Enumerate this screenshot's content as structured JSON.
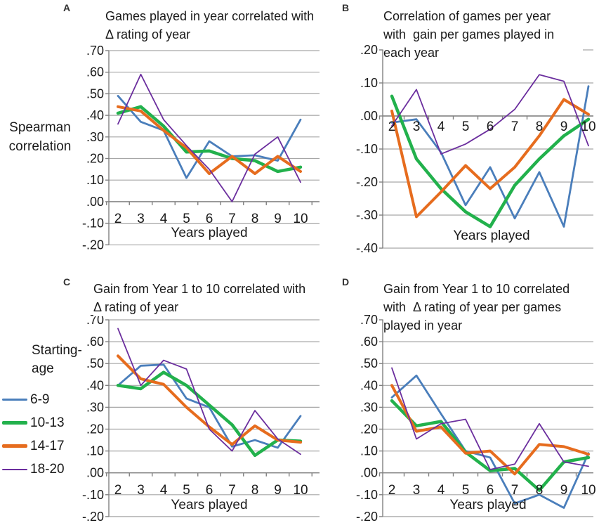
{
  "y_axis_label": "Spearman\ncorrelation",
  "legend": {
    "title": "Starting-\nage",
    "entries": [
      {
        "label": "6-9",
        "color": "#4a7ebb",
        "weight": 3
      },
      {
        "label": "10-13",
        "color": "#22b14c",
        "weight": 5
      },
      {
        "label": "14-17",
        "color": "#e66c1e",
        "weight": 4.5
      },
      {
        "label": "18-20",
        "color": "#6b2e9e",
        "weight": 2
      }
    ]
  },
  "colors": {
    "gridline": "#a6a6a6",
    "axis": "#808080",
    "text": "#1a1a1a",
    "blue": "#4a7ebb",
    "green": "#22b14c",
    "orange": "#e66c1e",
    "purple": "#6b2e9e"
  },
  "chart_data": [
    {
      "panel": "A",
      "type": "line",
      "title": "Games played in year correlated with\nΔ rating of year",
      "xlabel": "Years played",
      "x": [
        2,
        3,
        4,
        5,
        6,
        7,
        8,
        9,
        10
      ],
      "x_labels": [
        "2",
        "3",
        "4",
        "5",
        "6",
        "7",
        "8",
        "9",
        "10"
      ],
      "ylim": [
        -0.2,
        0.7
      ],
      "ytick_step": 0.1,
      "yticks": [
        ".70",
        ".60",
        ".50",
        ".40",
        ".30",
        ".20",
        ".10",
        ".00",
        "-.10",
        "-.20"
      ],
      "grid": true,
      "series": [
        {
          "name": "6-9",
          "color": "#4a7ebb",
          "width": 2.8,
          "values": [
            0.49,
            0.37,
            0.33,
            0.11,
            0.28,
            0.21,
            0.215,
            0.19,
            0.38
          ]
        },
        {
          "name": "10-13",
          "color": "#22b14c",
          "width": 4.5,
          "values": [
            0.41,
            0.44,
            0.35,
            0.23,
            0.235,
            0.2,
            0.19,
            0.14,
            0.16
          ]
        },
        {
          "name": "14-17",
          "color": "#e66c1e",
          "width": 4.0,
          "values": [
            0.44,
            0.42,
            0.33,
            0.25,
            0.13,
            0.21,
            0.13,
            0.21,
            0.14
          ]
        },
        {
          "name": "18-20",
          "color": "#6b2e9e",
          "width": 1.8,
          "values": [
            0.36,
            0.59,
            0.38,
            0.26,
            0.15,
            0.0,
            0.22,
            0.3,
            0.09
          ]
        }
      ]
    },
    {
      "panel": "B",
      "type": "line",
      "title": "Correlation of games per year\nwith  gain per games played in\neach year",
      "xlabel": "Years played",
      "x": [
        2,
        3,
        4,
        5,
        6,
        7,
        8,
        9,
        10
      ],
      "x_labels": [
        "2",
        "3",
        "4",
        "5",
        "6",
        "7",
        "8",
        "9",
        "10"
      ],
      "ylim": [
        -0.4,
        0.2
      ],
      "ytick_step": 0.1,
      "yticks": [
        ".20",
        ".10",
        ".00",
        "-.10",
        "-.20",
        "-.30",
        "-.40"
      ],
      "grid": true,
      "series": [
        {
          "name": "6-9",
          "color": "#4a7ebb",
          "width": 2.8,
          "values": [
            -0.02,
            -0.01,
            -0.11,
            -0.27,
            -0.155,
            -0.31,
            -0.17,
            -0.335,
            0.09
          ]
        },
        {
          "name": "10-13",
          "color": "#22b14c",
          "width": 4.5,
          "values": [
            0.06,
            -0.13,
            -0.22,
            -0.29,
            -0.335,
            -0.21,
            -0.13,
            -0.06,
            -0.01
          ]
        },
        {
          "name": "14-17",
          "color": "#e66c1e",
          "width": 4.0,
          "values": [
            0.015,
            -0.305,
            -0.23,
            -0.15,
            -0.22,
            -0.155,
            -0.06,
            0.05,
            0.005
          ]
        },
        {
          "name": "18-20",
          "color": "#6b2e9e",
          "width": 1.8,
          "values": [
            -0.03,
            0.08,
            -0.115,
            -0.085,
            -0.04,
            0.02,
            0.125,
            0.105,
            -0.09
          ]
        }
      ]
    },
    {
      "panel": "C",
      "type": "line",
      "title": "Gain from Year 1 to 10 correlated with\nΔ rating of year",
      "xlabel": "Years played",
      "x": [
        2,
        3,
        4,
        5,
        6,
        7,
        8,
        9,
        10
      ],
      "x_labels": [
        "2",
        "3",
        "4",
        "5",
        "6",
        "7",
        "8",
        "9",
        "10"
      ],
      "ylim": [
        -0.2,
        0.7
      ],
      "ytick_step": 0.1,
      "yticks": [
        ".70",
        ".60",
        ".50",
        ".40",
        ".30",
        ".20",
        ".10",
        ".00",
        "-.10",
        "-.20"
      ],
      "grid": true,
      "series": [
        {
          "name": "6-9",
          "color": "#4a7ebb",
          "width": 2.8,
          "values": [
            0.4,
            0.49,
            0.495,
            0.34,
            0.3,
            0.12,
            0.15,
            0.115,
            0.26
          ]
        },
        {
          "name": "10-13",
          "color": "#22b14c",
          "width": 4.5,
          "values": [
            0.4,
            0.385,
            0.46,
            0.4,
            0.31,
            0.22,
            0.08,
            0.15,
            0.145
          ]
        },
        {
          "name": "14-17",
          "color": "#e66c1e",
          "width": 4.0,
          "values": [
            0.535,
            0.43,
            0.405,
            0.3,
            0.21,
            0.13,
            0.215,
            0.15,
            0.14
          ]
        },
        {
          "name": "18-20",
          "color": "#6b2e9e",
          "width": 1.8,
          "values": [
            0.66,
            0.4,
            0.515,
            0.475,
            0.2,
            0.1,
            0.285,
            0.155,
            0.085
          ]
        }
      ]
    },
    {
      "panel": "D",
      "type": "line",
      "title": "Gain from Year 1 to 10 correlated\nwith  Δ rating of year per games\nplayed in year",
      "xlabel": "Years played",
      "x": [
        2,
        3,
        4,
        5,
        6,
        7,
        8,
        9,
        10
      ],
      "x_labels": [
        "2",
        "3",
        "4",
        "5",
        "6",
        "7",
        "8",
        "9",
        "10"
      ],
      "ylim": [
        -0.2,
        0.7
      ],
      "ytick_step": 0.1,
      "yticks": [
        ".70",
        ".60",
        ".50",
        ".40",
        ".30",
        ".20",
        ".10",
        ".00",
        "-.10",
        "-.20"
      ],
      "grid": true,
      "series": [
        {
          "name": "6-9",
          "color": "#4a7ebb",
          "width": 2.8,
          "values": [
            0.345,
            0.445,
            0.27,
            0.1,
            0.07,
            -0.14,
            -0.1,
            -0.16,
            0.09
          ]
        },
        {
          "name": "10-13",
          "color": "#22b14c",
          "width": 4.5,
          "values": [
            0.33,
            0.215,
            0.235,
            0.095,
            0.01,
            0.02,
            -0.08,
            0.05,
            0.07
          ]
        },
        {
          "name": "14-17",
          "color": "#e66c1e",
          "width": 4.0,
          "values": [
            0.4,
            0.19,
            0.21,
            0.09,
            0.1,
            -0.005,
            0.13,
            0.12,
            0.085
          ]
        },
        {
          "name": "18-20",
          "color": "#6b2e9e",
          "width": 1.8,
          "values": [
            0.48,
            0.155,
            0.225,
            0.245,
            0.015,
            0.04,
            0.225,
            0.05,
            0.03
          ]
        }
      ]
    }
  ]
}
